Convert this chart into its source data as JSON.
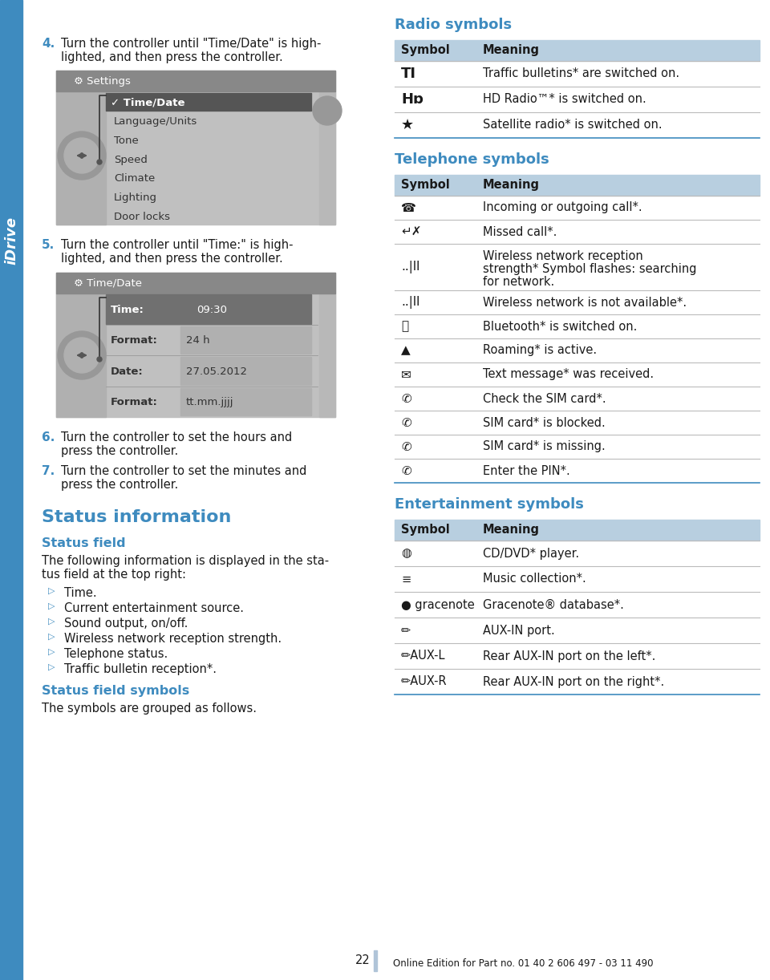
{
  "bg_color": "#ffffff",
  "page_width": 9.6,
  "page_height": 12.22,
  "blue_color": "#3e8bbf",
  "text_color": "#1a1a1a",
  "table_header_bg": "#b8cfe0",
  "sidebar_text": "iDrive",
  "page_number": "22",
  "footer_text": "Online Edition for Part no. 01 40 2 606 497 - 03 11 490",
  "step4_number": "4.",
  "step4_text_line1": "Turn the controller until \"Time/Date\" is high-",
  "step4_text_line2": "lighted, and then press the controller.",
  "step5_number": "5.",
  "step5_text_line1": "Turn the controller until \"Time:\" is high-",
  "step5_text_line2": "lighted, and then press the controller.",
  "step6_number": "6.",
  "step6_text_line1": "Turn the controller to set the hours and",
  "step6_text_line2": "press the controller.",
  "step7_number": "7.",
  "step7_text_line1": "Turn the controller to set the minutes and",
  "step7_text_line2": "press the controller.",
  "screen1_title": "Settings",
  "screen1_items": [
    "Time/Date",
    "Language/Units",
    "Tone",
    "Speed",
    "Climate",
    "Lighting",
    "Door locks"
  ],
  "screen2_title": "Time/Date",
  "screen2_rows": [
    [
      "Time:",
      "09:30"
    ],
    [
      "Format:",
      "24 h"
    ],
    [
      "Date:",
      "27.05.2012"
    ],
    [
      "Format:",
      "tt.mm.jjjj"
    ]
  ],
  "status_info_title": "Status information",
  "status_field_title": "Status field",
  "status_field_body1": "The following information is displayed in the sta-",
  "status_field_body2": "tus field at the top right:",
  "status_field_bullets": [
    "Time.",
    "Current entertainment source.",
    "Sound output, on/off.",
    "Wireless network reception strength.",
    "Telephone status.",
    "Traffic bulletin reception*."
  ],
  "status_field_symbols_title": "Status field symbols",
  "status_field_symbols_body": "The symbols are grouped as follows.",
  "radio_symbols_title": "Radio symbols",
  "radio_table_header": [
    "Symbol",
    "Meaning"
  ],
  "telephone_symbols_title": "Telephone symbols",
  "telephone_table_header": [
    "Symbol",
    "Meaning"
  ],
  "entertainment_symbols_title": "Entertainment symbols",
  "entertainment_table_header": [
    "Symbol",
    "Meaning"
  ]
}
